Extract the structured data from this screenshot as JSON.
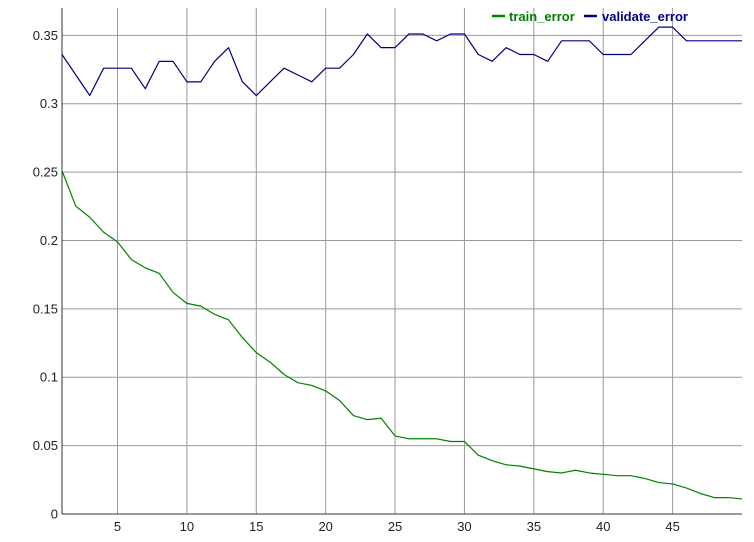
{
  "chart_data": {
    "type": "line",
    "title": "",
    "xlabel": "",
    "ylabel": "",
    "xlim": [
      1,
      50
    ],
    "ylim": [
      0,
      0.37
    ],
    "grid": true,
    "legend_position": "top-right",
    "x_ticks": [
      5,
      10,
      15,
      20,
      25,
      30,
      35,
      40,
      45
    ],
    "x_tick_labels": [
      "5",
      "10",
      "15",
      "20",
      "25",
      "30",
      "35",
      "40",
      "45"
    ],
    "y_ticks": [
      0,
      0.05,
      0.1,
      0.15,
      0.2,
      0.25,
      0.3,
      0.35
    ],
    "y_tick_labels": [
      "0",
      "0.05",
      "0.1",
      "0.15",
      "0.2",
      "0.25",
      "0.3",
      "0.35"
    ],
    "x": [
      1,
      2,
      3,
      4,
      5,
      6,
      7,
      8,
      9,
      10,
      11,
      12,
      13,
      14,
      15,
      16,
      17,
      18,
      19,
      20,
      21,
      22,
      23,
      24,
      25,
      26,
      27,
      28,
      29,
      30,
      31,
      32,
      33,
      34,
      35,
      36,
      37,
      38,
      39,
      40,
      41,
      42,
      43,
      44,
      45,
      46,
      47,
      48,
      49,
      50
    ],
    "series": [
      {
        "name": "train_error",
        "color": "#008000",
        "values": [
          0.251,
          0.225,
          0.217,
          0.206,
          0.199,
          0.186,
          0.18,
          0.176,
          0.162,
          0.154,
          0.152,
          0.146,
          0.142,
          0.129,
          0.118,
          0.111,
          0.102,
          0.096,
          0.094,
          0.09,
          0.083,
          0.072,
          0.069,
          0.07,
          0.057,
          0.055,
          0.055,
          0.055,
          0.053,
          0.053,
          0.043,
          0.039,
          0.036,
          0.035,
          0.033,
          0.031,
          0.03,
          0.032,
          0.03,
          0.029,
          0.028,
          0.028,
          0.026,
          0.023,
          0.022,
          0.019,
          0.015,
          0.012,
          0.012,
          0.011
        ]
      },
      {
        "name": "validate_error",
        "color": "#000080",
        "values": [
          0.336,
          0.321,
          0.306,
          0.326,
          0.326,
          0.326,
          0.311,
          0.331,
          0.331,
          0.316,
          0.316,
          0.331,
          0.341,
          0.316,
          0.306,
          0.316,
          0.326,
          0.321,
          0.316,
          0.326,
          0.326,
          0.336,
          0.351,
          0.341,
          0.341,
          0.351,
          0.351,
          0.346,
          0.351,
          0.351,
          0.336,
          0.331,
          0.341,
          0.336,
          0.336,
          0.331,
          0.346,
          0.346,
          0.346,
          0.336,
          0.336,
          0.336,
          0.346,
          0.356,
          0.356,
          0.346,
          0.346,
          0.346,
          0.346,
          0.346
        ]
      }
    ]
  }
}
